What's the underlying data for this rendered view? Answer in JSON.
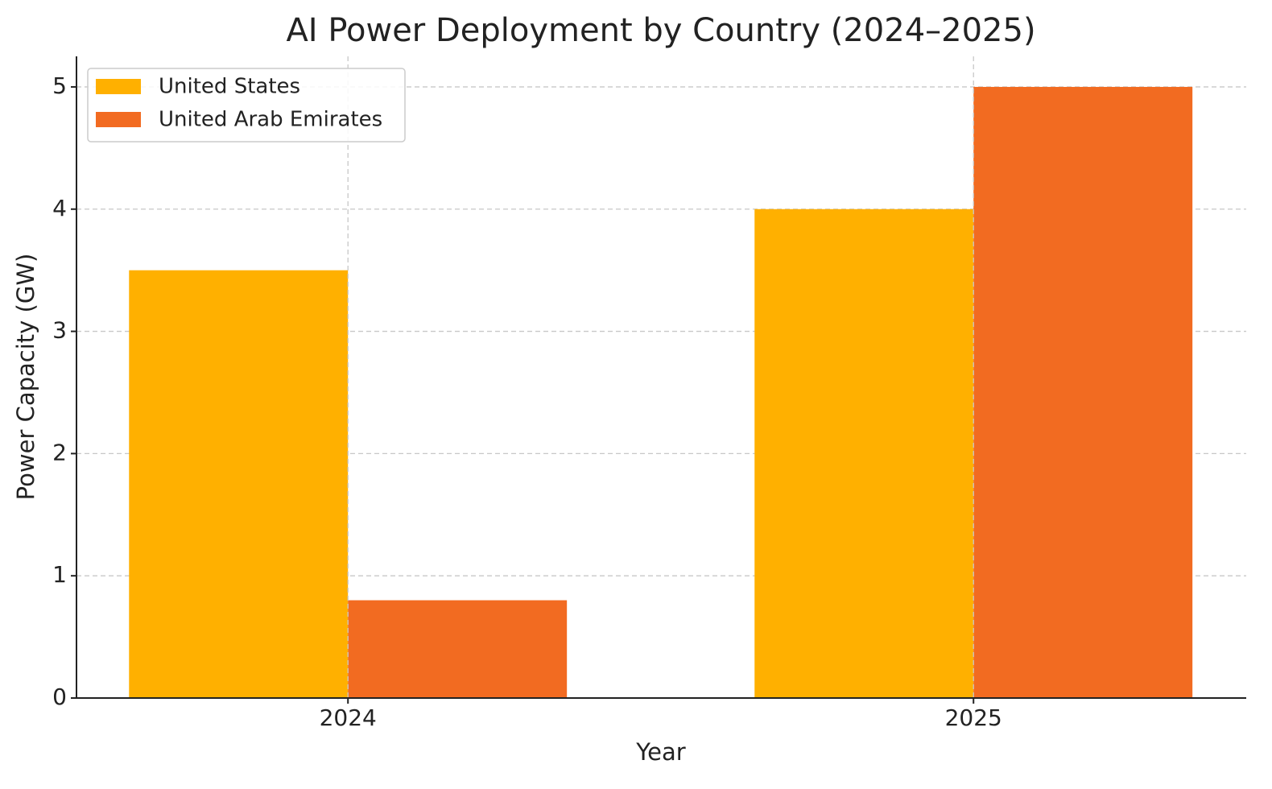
{
  "chart_data": {
    "type": "bar",
    "title": "AI Power Deployment by Country (2024–2025)",
    "x_label": "Year",
    "y_label": "Power Capacity (GW)",
    "categories": [
      "2024",
      "2025"
    ],
    "series": [
      {
        "name": "United States",
        "color": "#ffb000",
        "values": [
          3.5,
          4.0
        ]
      },
      {
        "name": "United Arab Emirates",
        "color": "#f26b21",
        "values": [
          0.8,
          5.0
        ]
      }
    ],
    "ylim": [
      0,
      5.25
    ],
    "yticks": [
      0,
      1,
      2,
      3,
      4,
      5
    ],
    "grid": true,
    "legend": "upper-left"
  }
}
